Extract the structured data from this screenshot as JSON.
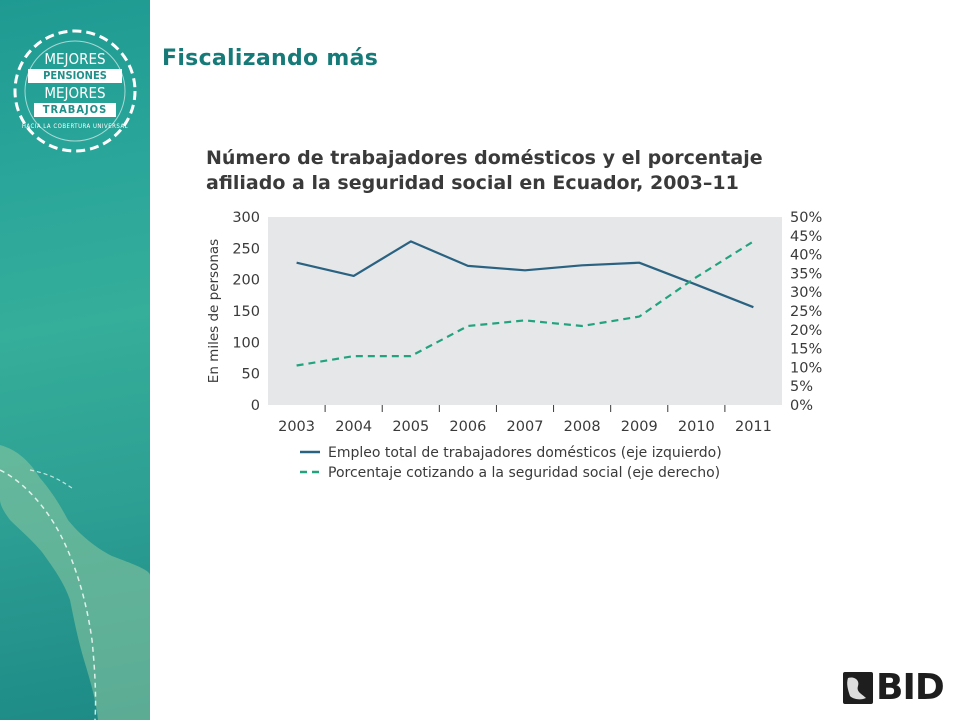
{
  "header": {
    "title": "Fiscalizando más"
  },
  "logo": {
    "line1": "MEJORES",
    "line2": "PENSIONES",
    "line3": "MEJORES",
    "line4": "TRABAJOS",
    "tagline": "HACIA LA COBERTURA UNIVERSAL"
  },
  "footer": {
    "brand": "BID"
  },
  "colors": {
    "navy": "#2a6282",
    "teal": "#22a37e",
    "plot_bg": "#e6e7e8",
    "title_teal": "#167a78"
  },
  "chart_data": {
    "type": "line",
    "title": "Número de trabajadores domésticos y el porcentaje afiliado a la seguridad social en Ecuador, 2003–11",
    "x": [
      "2003",
      "2004",
      "2005",
      "2006",
      "2007",
      "2008",
      "2009",
      "2010",
      "2011"
    ],
    "ylabel": "En miles de personas",
    "ylim": [
      0,
      300
    ],
    "yticks": [
      "0",
      "50",
      "100",
      "150",
      "200",
      "250",
      "300"
    ],
    "y2lim": [
      0,
      50
    ],
    "y2ticks": [
      "0%",
      "5%",
      "10%",
      "15%",
      "20%",
      "25%",
      "30%",
      "35%",
      "40%",
      "45%",
      "50%"
    ],
    "grid": false,
    "legend_position": "bottom",
    "series": [
      {
        "name": "Empleo total de trabajadores domésticos (eje izquierdo)",
        "axis": "left",
        "style": "solid",
        "color": "#2a6282",
        "values": [
          227,
          206,
          261,
          222,
          215,
          223,
          227,
          192,
          156
        ]
      },
      {
        "name": "Porcentaje cotizando a la seguridad social (eje derecho)",
        "axis": "right",
        "style": "dashed",
        "color": "#22a37e",
        "values": [
          10.5,
          13,
          13,
          21,
          22.5,
          21,
          23.5,
          34,
          43.5
        ]
      }
    ]
  }
}
